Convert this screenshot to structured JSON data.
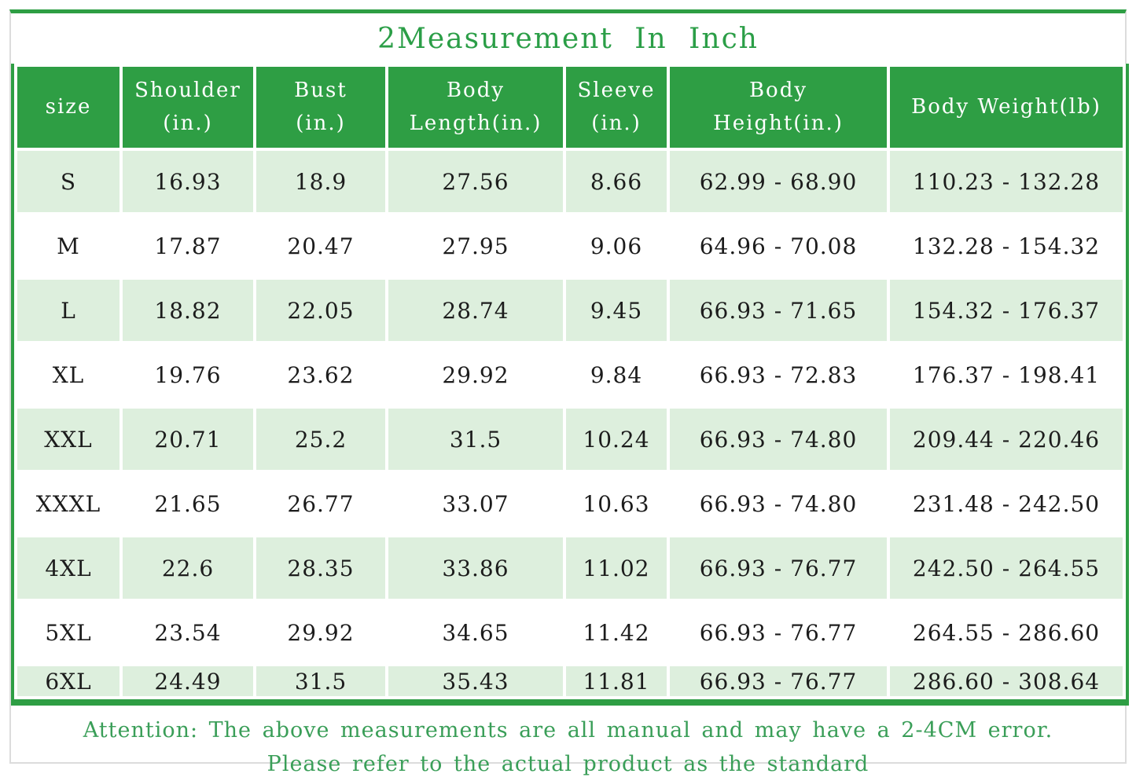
{
  "colors": {
    "header_green": "#2e9e44",
    "border_green": "#2e9e44",
    "title_green": "#2b9e47",
    "row_light_green": "#ddefdd",
    "note_green": "#3a9e58",
    "frame_gray": "#dcdcdc",
    "header_text": "#ffffff",
    "body_text": "#1c1c1c"
  },
  "chart_data": {
    "type": "table",
    "title": "2Measurement In Inch",
    "columns": [
      "size",
      "Shoulder\n(in.)",
      "Bust\n(in.)",
      "Body\nLength(in.)",
      "Sleeve\n(in.)",
      "Body\nHeight(in.)",
      "Body Weight(lb)"
    ],
    "rows": [
      [
        "S",
        "16.93",
        "18.9",
        "27.56",
        "8.66",
        "62.99 - 68.90",
        "110.23 - 132.28"
      ],
      [
        "M",
        "17.87",
        "20.47",
        "27.95",
        "9.06",
        "64.96 - 70.08",
        "132.28 - 154.32"
      ],
      [
        "L",
        "18.82",
        "22.05",
        "28.74",
        "9.45",
        "66.93 - 71.65",
        "154.32 - 176.37"
      ],
      [
        "XL",
        "19.76",
        "23.62",
        "29.92",
        "9.84",
        "66.93 - 72.83",
        "176.37 - 198.41"
      ],
      [
        "XXL",
        "20.71",
        "25.2",
        "31.5",
        "10.24",
        "66.93 - 74.80",
        "209.44 - 220.46"
      ],
      [
        "XXXL",
        "21.65",
        "26.77",
        "33.07",
        "10.63",
        "66.93 - 74.80",
        "231.48 - 242.50"
      ],
      [
        "4XL",
        "22.6",
        "28.35",
        "33.86",
        "11.02",
        "66.93 - 76.77",
        "242.50 - 264.55"
      ],
      [
        "5XL",
        "23.54",
        "29.92",
        "34.65",
        "11.42",
        "66.93 - 76.77",
        "264.55 - 286.60"
      ],
      [
        "6XL",
        "24.49",
        "31.5",
        "35.43",
        "11.81",
        "66.93 - 76.77",
        "286.60 - 308.64"
      ]
    ],
    "note_line1": "Attention: The above measurements are all manual and may have a 2-4CM error.",
    "note_line2": "Please refer to the actual product as the standard",
    "layout": {
      "header_background": "#2e9e44",
      "odd_row_background": "#ddefdd",
      "even_row_background": "#ffffff",
      "grid": "white 4px gaps between cells, green outer table border"
    }
  }
}
